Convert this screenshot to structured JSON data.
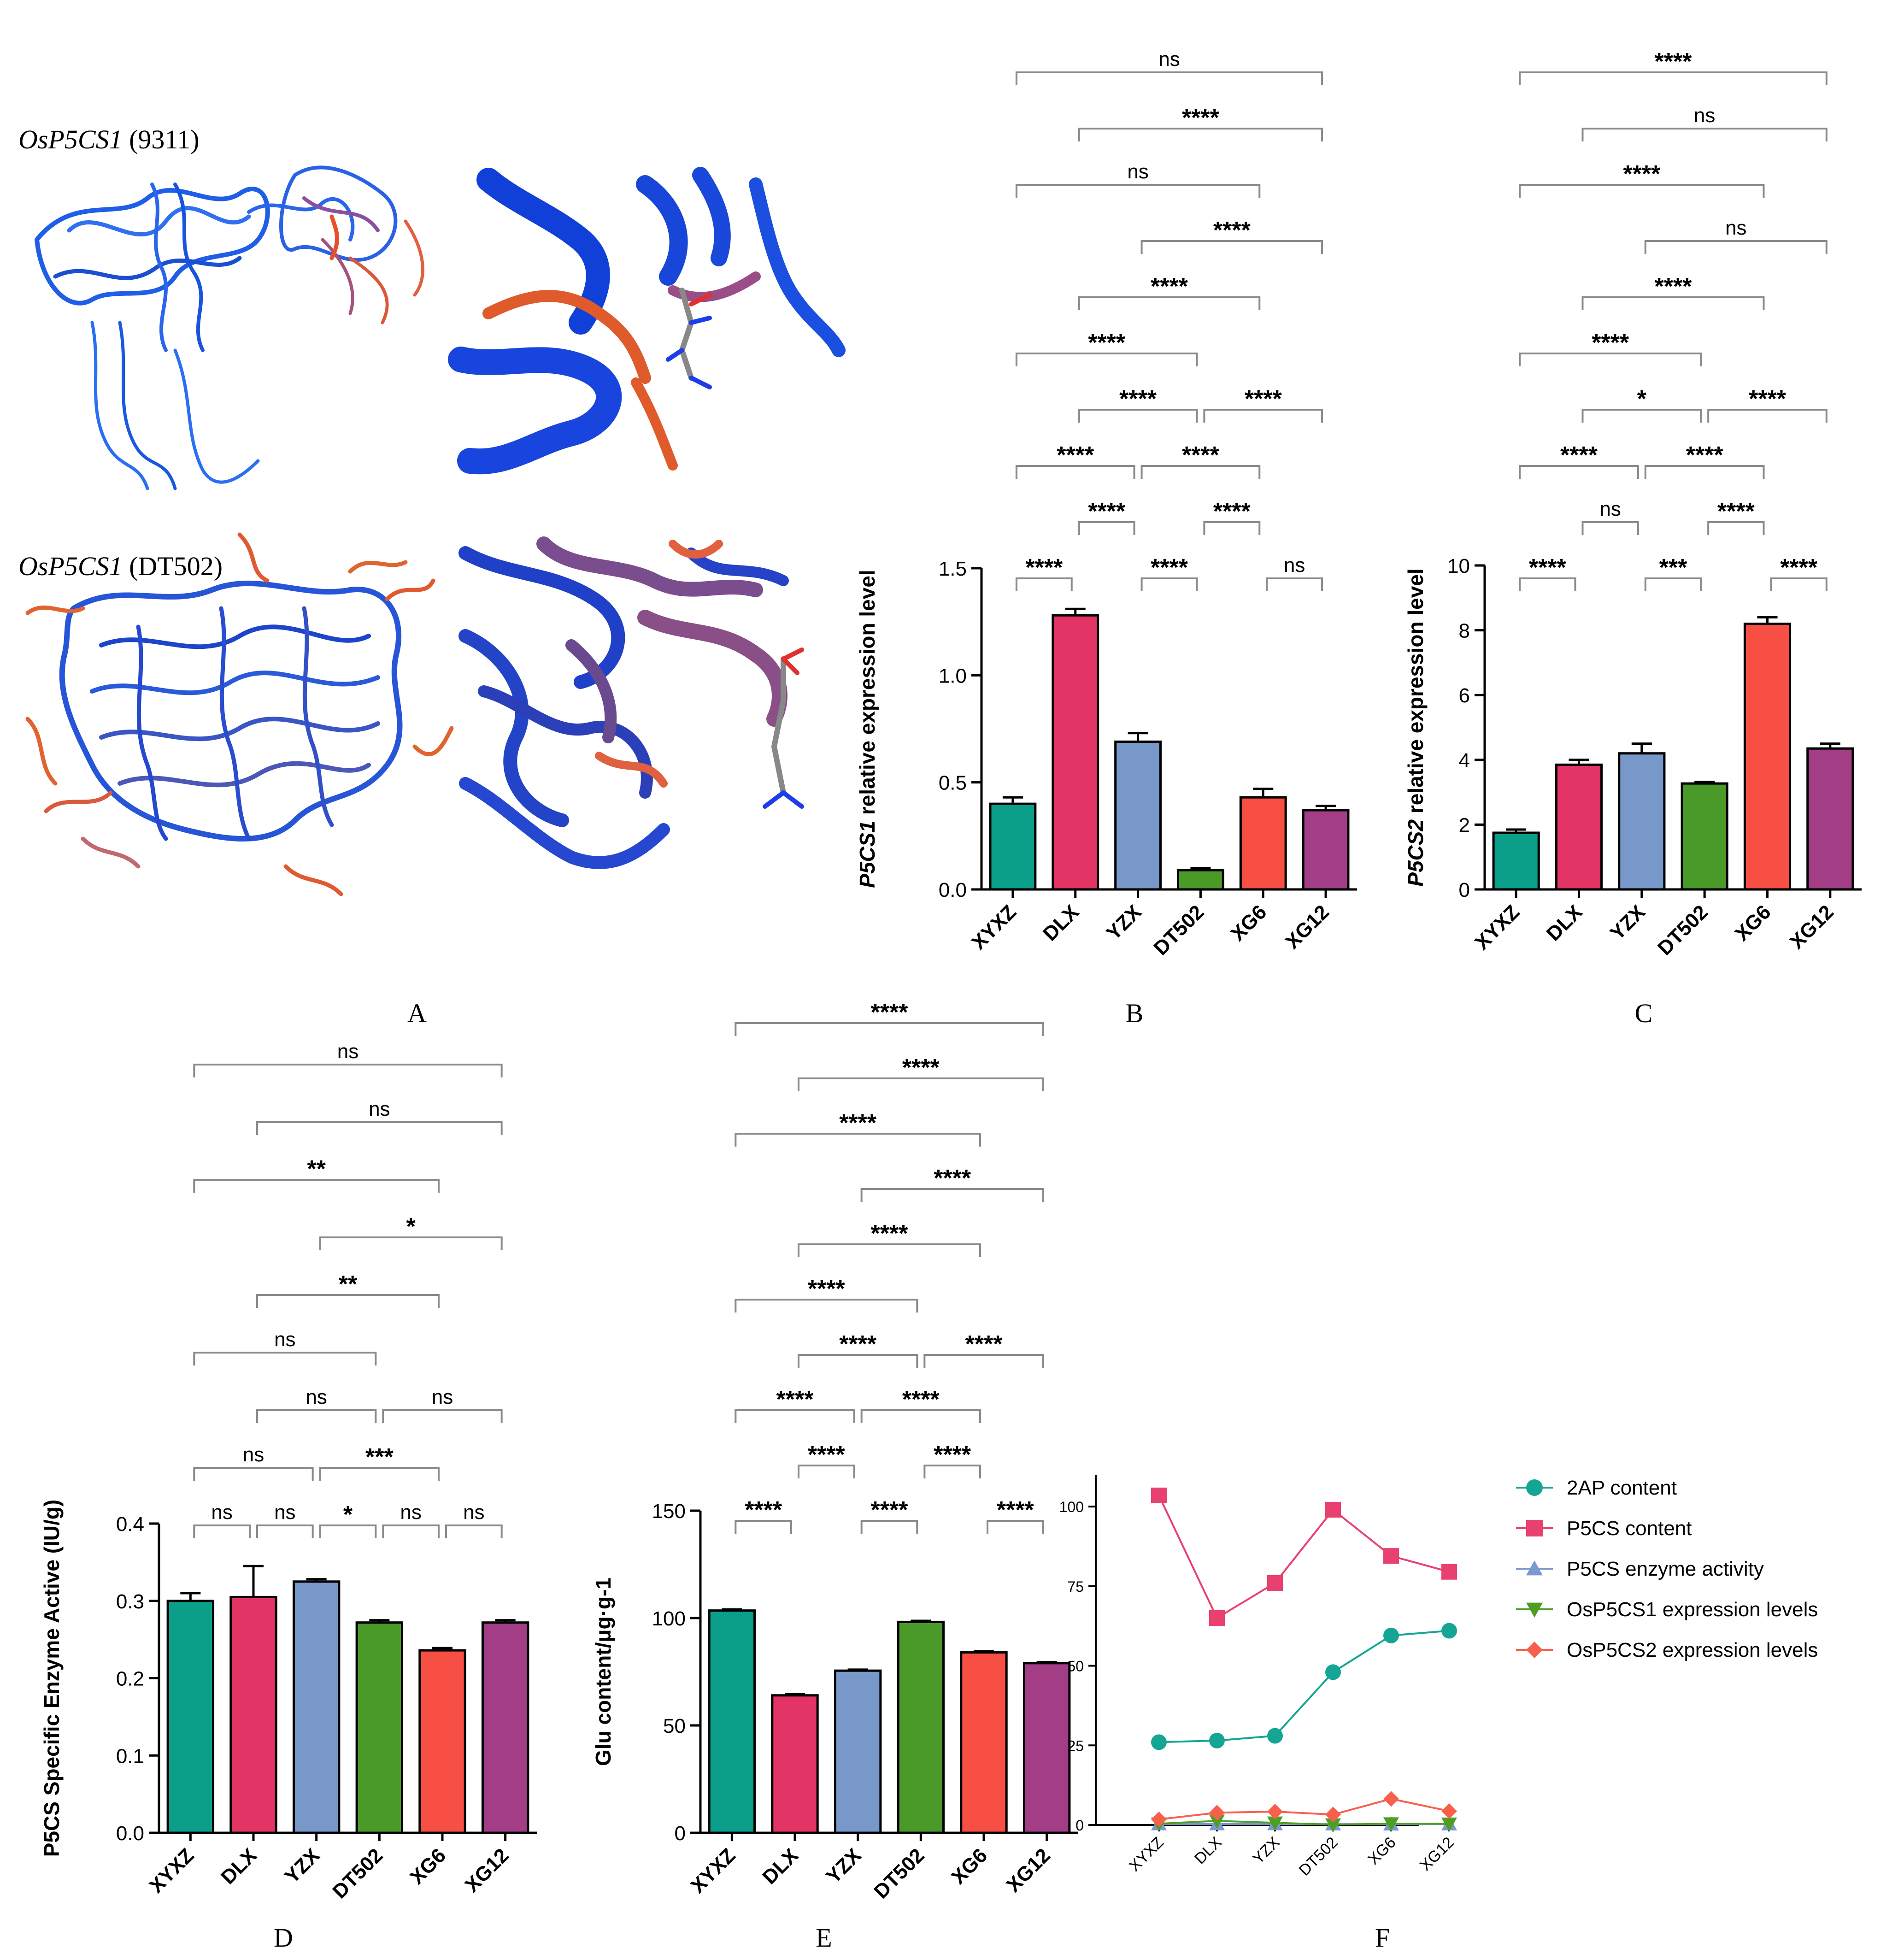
{
  "panel_letters": {
    "A": "A",
    "B": "B",
    "C": "C",
    "D": "D",
    "E": "E",
    "F": "F"
  },
  "panel_a": {
    "labels": [
      {
        "gene": "OsP5CS1",
        "variety": "(9311)"
      },
      {
        "gene": "OsP5CS1",
        "variety": "(DT502)"
      }
    ]
  },
  "chart_data": [
    {
      "id": "B",
      "type": "bar",
      "categories": [
        "XYXZ",
        "DLX",
        "YZX",
        "DT502",
        "XG6",
        "XG12"
      ],
      "values": [
        0.4,
        1.28,
        0.69,
        0.09,
        0.43,
        0.37
      ],
      "errors": [
        0.03,
        0.03,
        0.04,
        0.01,
        0.04,
        0.02
      ],
      "colors": [
        "#0b9f8a",
        "#e23565",
        "#7898c9",
        "#4a9a2a",
        "#f84f44",
        "#a23d86"
      ],
      "ylabel_italic": "P5CS1",
      "ylabel_rest": " relative expression level",
      "ylim": [
        0,
        1.5
      ],
      "yticks": [
        "0.0",
        "0.5",
        "1.0",
        "1.5"
      ],
      "significance": [
        {
          "from": 0,
          "to": 1,
          "label": "****",
          "level": 0
        },
        {
          "from": 2,
          "to": 3,
          "label": "****",
          "level": 0
        },
        {
          "from": 4,
          "to": 5,
          "label": "ns",
          "level": 0
        },
        {
          "from": 1,
          "to": 2,
          "label": "****",
          "level": 1
        },
        {
          "from": 3,
          "to": 4,
          "label": "****",
          "level": 1
        },
        {
          "from": 0,
          "to": 2,
          "label": "****",
          "level": 2
        },
        {
          "from": 2,
          "to": 4,
          "label": "****",
          "level": 2
        },
        {
          "from": 1,
          "to": 3,
          "label": "****",
          "level": 3
        },
        {
          "from": 3,
          "to": 5,
          "label": "****",
          "level": 3
        },
        {
          "from": 0,
          "to": 3,
          "label": "****",
          "level": 4
        },
        {
          "from": 1,
          "to": 4,
          "label": "****",
          "level": 5
        },
        {
          "from": 2,
          "to": 5,
          "label": "****",
          "level": 6
        },
        {
          "from": 0,
          "to": 4,
          "label": "ns",
          "level": 7
        },
        {
          "from": 1,
          "to": 5,
          "label": "****",
          "level": 8
        },
        {
          "from": 0,
          "to": 5,
          "label": "ns",
          "level": 9
        }
      ]
    },
    {
      "id": "C",
      "type": "bar",
      "categories": [
        "XYXZ",
        "DLX",
        "YZX",
        "DT502",
        "XG6",
        "XG12"
      ],
      "values": [
        1.75,
        3.85,
        4.2,
        3.27,
        8.2,
        4.35
      ],
      "errors": [
        0.1,
        0.15,
        0.3,
        0.05,
        0.2,
        0.15
      ],
      "colors": [
        "#0b9f8a",
        "#e23565",
        "#7898c9",
        "#4a9a2a",
        "#f84f44",
        "#a23d86"
      ],
      "ylabel_italic": "P5CS2",
      "ylabel_rest": " relative expression level",
      "ylim": [
        0,
        10
      ],
      "yticks": [
        "0",
        "2",
        "4",
        "6",
        "8",
        "10"
      ],
      "significance": [
        {
          "from": 0,
          "to": 1,
          "label": "****",
          "level": 0
        },
        {
          "from": 2,
          "to": 3,
          "label": "***",
          "level": 0
        },
        {
          "from": 4,
          "to": 5,
          "label": "****",
          "level": 0
        },
        {
          "from": 1,
          "to": 2,
          "label": "ns",
          "level": 1
        },
        {
          "from": 3,
          "to": 4,
          "label": "****",
          "level": 1
        },
        {
          "from": 0,
          "to": 2,
          "label": "****",
          "level": 2
        },
        {
          "from": 2,
          "to": 4,
          "label": "****",
          "level": 2
        },
        {
          "from": 1,
          "to": 3,
          "label": "*",
          "level": 3
        },
        {
          "from": 3,
          "to": 5,
          "label": "****",
          "level": 3
        },
        {
          "from": 0,
          "to": 3,
          "label": "****",
          "level": 4
        },
        {
          "from": 1,
          "to": 4,
          "label": "****",
          "level": 5
        },
        {
          "from": 2,
          "to": 5,
          "label": "ns",
          "level": 6
        },
        {
          "from": 0,
          "to": 4,
          "label": "****",
          "level": 7
        },
        {
          "from": 1,
          "to": 5,
          "label": "ns",
          "level": 8
        },
        {
          "from": 0,
          "to": 5,
          "label": "****",
          "level": 9
        }
      ]
    },
    {
      "id": "D",
      "type": "bar",
      "categories": [
        "XYXZ",
        "DLX",
        "YZX",
        "DT502",
        "XG6",
        "XG12"
      ],
      "values": [
        0.3,
        0.305,
        0.325,
        0.272,
        0.236,
        0.272
      ],
      "errors": [
        0.01,
        0.04,
        0.003,
        0.003,
        0.003,
        0.003
      ],
      "colors": [
        "#0b9f8a",
        "#e23565",
        "#7898c9",
        "#4a9a2a",
        "#f84f44",
        "#a23d86"
      ],
      "ylabel_italic": "",
      "ylabel_rest": "P5CS  Specific Enzyme Active (IU/g)",
      "ylim": [
        0,
        0.4
      ],
      "yticks": [
        "0.0",
        "0.1",
        "0.2",
        "0.3",
        "0.4"
      ],
      "significance": [
        {
          "from": 0,
          "to": 1,
          "label": "ns",
          "level": 0
        },
        {
          "from": 1,
          "to": 2,
          "label": "ns",
          "level": 0
        },
        {
          "from": 2,
          "to": 3,
          "label": "*",
          "level": 0
        },
        {
          "from": 3,
          "to": 4,
          "label": "ns",
          "level": 0
        },
        {
          "from": 4,
          "to": 5,
          "label": "ns",
          "level": 0
        },
        {
          "from": 0,
          "to": 2,
          "label": "ns",
          "level": 1
        },
        {
          "from": 2,
          "to": 4,
          "label": "***",
          "level": 1
        },
        {
          "from": 1,
          "to": 3,
          "label": "ns",
          "level": 2
        },
        {
          "from": 3,
          "to": 5,
          "label": "ns",
          "level": 2
        },
        {
          "from": 0,
          "to": 3,
          "label": "ns",
          "level": 3
        },
        {
          "from": 1,
          "to": 4,
          "label": "**",
          "level": 4
        },
        {
          "from": 2,
          "to": 5,
          "label": "*",
          "level": 5
        },
        {
          "from": 0,
          "to": 4,
          "label": "**",
          "level": 6
        },
        {
          "from": 1,
          "to": 5,
          "label": "ns",
          "level": 7
        },
        {
          "from": 0,
          "to": 5,
          "label": "ns",
          "level": 8
        }
      ]
    },
    {
      "id": "E",
      "type": "bar",
      "categories": [
        "XYXZ",
        "DLX",
        "YZX",
        "DT502",
        "XG6",
        "XG12"
      ],
      "values": [
        103.5,
        64,
        75.5,
        98.2,
        84,
        79
      ],
      "errors": [
        0.5,
        0.5,
        0.5,
        0.5,
        0.5,
        0.5
      ],
      "colors": [
        "#0b9f8a",
        "#e23565",
        "#7898c9",
        "#4a9a2a",
        "#f84f44",
        "#a23d86"
      ],
      "ylabel_italic": "",
      "ylabel_rest": "Glu content/μg·g-1",
      "ylim": [
        0,
        150
      ],
      "yticks": [
        "0",
        "50",
        "100",
        "150"
      ],
      "significance": [
        {
          "from": 0,
          "to": 1,
          "label": "****",
          "level": 0
        },
        {
          "from": 2,
          "to": 3,
          "label": "****",
          "level": 0
        },
        {
          "from": 4,
          "to": 5,
          "label": "****",
          "level": 0
        },
        {
          "from": 1,
          "to": 2,
          "label": "****",
          "level": 1
        },
        {
          "from": 3,
          "to": 4,
          "label": "****",
          "level": 1
        },
        {
          "from": 0,
          "to": 2,
          "label": "****",
          "level": 2
        },
        {
          "from": 2,
          "to": 4,
          "label": "****",
          "level": 2
        },
        {
          "from": 1,
          "to": 3,
          "label": "****",
          "level": 3
        },
        {
          "from": 3,
          "to": 5,
          "label": "****",
          "level": 3
        },
        {
          "from": 0,
          "to": 3,
          "label": "****",
          "level": 4
        },
        {
          "from": 1,
          "to": 4,
          "label": "****",
          "level": 5
        },
        {
          "from": 2,
          "to": 5,
          "label": "****",
          "level": 6
        },
        {
          "from": 0,
          "to": 4,
          "label": "****",
          "level": 7
        },
        {
          "from": 1,
          "to": 5,
          "label": "****",
          "level": 8
        },
        {
          "from": 0,
          "to": 5,
          "label": "****",
          "level": 9
        }
      ]
    },
    {
      "id": "F",
      "type": "line",
      "x": [
        "XYXZ",
        "DLX",
        "YZX",
        "DT502",
        "XG6",
        "XG12"
      ],
      "ylim": [
        0,
        110
      ],
      "yticks": [
        "0",
        "25",
        "50",
        "75",
        "100"
      ],
      "legend_position": "right",
      "series": [
        {
          "name": "2AP content",
          "marker": "circle",
          "color": "#14a594",
          "values": [
            26,
            26.5,
            28,
            48,
            59.5,
            61
          ]
        },
        {
          "name": "P5CS content",
          "marker": "square",
          "color": "#e8406f",
          "values": [
            103.5,
            65,
            76,
            99,
            84.5,
            79.5
          ]
        },
        {
          "name": "P5CS enzyme activity",
          "marker": "triangle-up",
          "color": "#7c98d0",
          "values": [
            0.3,
            0.3,
            0.3,
            0.27,
            0.24,
            0.27
          ]
        },
        {
          "name": "OsP5CS1 expression levels",
          "marker": "triangle-down",
          "color": "#4e9e23",
          "values": [
            0.4,
            1.28,
            0.69,
            0.09,
            0.43,
            0.37
          ]
        },
        {
          "name": "OsP5CS2 expression levels",
          "marker": "diamond",
          "color": "#f8604c",
          "values": [
            1.75,
            3.85,
            4.2,
            3.27,
            8.2,
            4.35
          ]
        }
      ]
    }
  ]
}
